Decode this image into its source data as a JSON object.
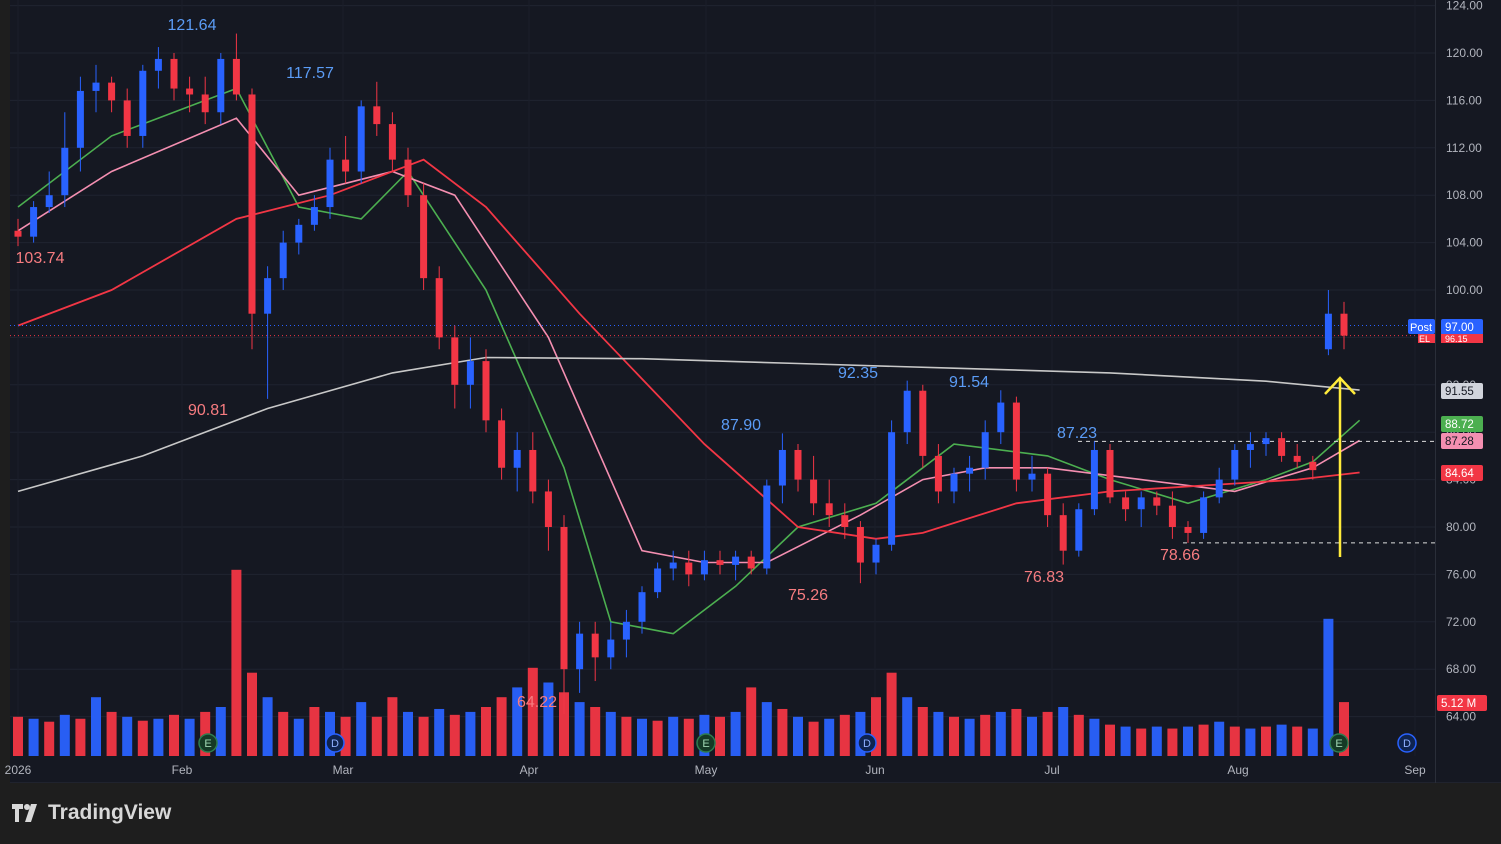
{
  "branding": {
    "name": "TradingView",
    "logo_icon": "tradingview-logo-icon"
  },
  "colors": {
    "background": "#151822",
    "up": "#2962ff",
    "down": "#f23645",
    "ma_fast": "#4caf50",
    "ma_mid": "#f48fb1",
    "ma_slow": "#f23645",
    "ma_long": "#c8c8c8",
    "arrow": "#ffeb3b",
    "axis_text": "#b2b5be"
  },
  "price_axis": {
    "ticks": [
      "124.00",
      "120.00",
      "116.00",
      "112.00",
      "108.00",
      "104.00",
      "100.00",
      "96.00",
      "92.00",
      "88.00",
      "84.00",
      "80.00",
      "76.00",
      "72.00",
      "68.00",
      "64.00"
    ]
  },
  "time_axis": {
    "labels": [
      "2026",
      "Feb",
      "Mar",
      "Apr",
      "May",
      "Jun",
      "Jul",
      "Aug",
      "Sep"
    ]
  },
  "price_badges": {
    "post_label": "Post",
    "post_value": "97.00",
    "el_label": "EL",
    "el_value": "96.15",
    "ma_long_value": "91.55",
    "ma_fast_value": "88.72",
    "ma_mid_value": "87.28",
    "ma_slow_value": "84.64",
    "volume_value": "5.12 M"
  },
  "event_markers": {
    "earnings_label": "E",
    "dividend_label": "D"
  },
  "annotations": [
    {
      "text": "121.64",
      "type": "high"
    },
    {
      "text": "117.57",
      "type": "high"
    },
    {
      "text": "103.74",
      "type": "low"
    },
    {
      "text": "90.81",
      "type": "low"
    },
    {
      "text": "64.22",
      "type": "low"
    },
    {
      "text": "87.90",
      "type": "high"
    },
    {
      "text": "75.26",
      "type": "low"
    },
    {
      "text": "92.35",
      "type": "high"
    },
    {
      "text": "91.54",
      "type": "high"
    },
    {
      "text": "76.83",
      "type": "low"
    },
    {
      "text": "87.23",
      "type": "high"
    },
    {
      "text": "78.66",
      "type": "low"
    }
  ],
  "chart_data": {
    "type": "candlestick",
    "y_range": [
      62,
      124
    ],
    "x_period": "2026-01 to 2026-09",
    "candles": [
      [
        105,
        106,
        103.7,
        104.5
      ],
      [
        104.5,
        107.5,
        104,
        107
      ],
      [
        107,
        110,
        106.5,
        108
      ],
      [
        108,
        115,
        107,
        112
      ],
      [
        112,
        118,
        110,
        116.8
      ],
      [
        116.8,
        119,
        115,
        117.5
      ],
      [
        117.5,
        118,
        115,
        116
      ],
      [
        116,
        117,
        112,
        113
      ],
      [
        113,
        119,
        112,
        118.5
      ],
      [
        118.5,
        120.5,
        117,
        119.5
      ],
      [
        119.5,
        120,
        116,
        117
      ],
      [
        117,
        118,
        115,
        116.5
      ],
      [
        116.5,
        118,
        114,
        115
      ],
      [
        115,
        120,
        114,
        119.5
      ],
      [
        119.5,
        121.64,
        116,
        116.5
      ],
      [
        116.5,
        117,
        95,
        98
      ],
      [
        98,
        102,
        90.81,
        101
      ],
      [
        101,
        105,
        100,
        104
      ],
      [
        104,
        106,
        103,
        105.5
      ],
      [
        105.5,
        108,
        105,
        107
      ],
      [
        107,
        112,
        106,
        111
      ],
      [
        111,
        113,
        109,
        110
      ],
      [
        110,
        116,
        109,
        115.5
      ],
      [
        115.5,
        117.57,
        113,
        114
      ],
      [
        114,
        115,
        110,
        111
      ],
      [
        111,
        112,
        107,
        108
      ],
      [
        108,
        109,
        100,
        101
      ],
      [
        101,
        102,
        95,
        96
      ],
      [
        96,
        97,
        90,
        92
      ],
      [
        92,
        96,
        90,
        94
      ],
      [
        94,
        95,
        88,
        89
      ],
      [
        89,
        90,
        84,
        85
      ],
      [
        85,
        88,
        83,
        86.5
      ],
      [
        86.5,
        88,
        82,
        83
      ],
      [
        83,
        84,
        78,
        80
      ],
      [
        80,
        81,
        64.22,
        68
      ],
      [
        68,
        72,
        66,
        71
      ],
      [
        71,
        72,
        67,
        69
      ],
      [
        69,
        72,
        68,
        70.5
      ],
      [
        70.5,
        73,
        69,
        72
      ],
      [
        72,
        75,
        71,
        74.5
      ],
      [
        74.5,
        77,
        74,
        76.5
      ],
      [
        76.5,
        78,
        75.5,
        77
      ],
      [
        77,
        78,
        75,
        76
      ],
      [
        76,
        78,
        75.5,
        77.2
      ],
      [
        77.2,
        78,
        76,
        76.8
      ],
      [
        76.8,
        78,
        75.5,
        77.5
      ],
      [
        77.5,
        78,
        76,
        76.5
      ],
      [
        76.5,
        84,
        76,
        83.5
      ],
      [
        83.5,
        87.9,
        82,
        86.5
      ],
      [
        86.5,
        87,
        83,
        84
      ],
      [
        84,
        86,
        81,
        82
      ],
      [
        82,
        84,
        80,
        81
      ],
      [
        81,
        82,
        79,
        80
      ],
      [
        80,
        80.5,
        75.26,
        77
      ],
      [
        77,
        79,
        76,
        78.5
      ],
      [
        78.5,
        89,
        78,
        88
      ],
      [
        88,
        92.35,
        87,
        91.5
      ],
      [
        91.5,
        92,
        85,
        86
      ],
      [
        86,
        87,
        82,
        83
      ],
      [
        83,
        85,
        82,
        84.5
      ],
      [
        84.5,
        86,
        83,
        85
      ],
      [
        85,
        89,
        84,
        88
      ],
      [
        88,
        91.54,
        87,
        90.5
      ],
      [
        90.5,
        91,
        83,
        84
      ],
      [
        84,
        86,
        83,
        84.5
      ],
      [
        84.5,
        85,
        80,
        81
      ],
      [
        81,
        82,
        76.83,
        78
      ],
      [
        78,
        82,
        77.5,
        81.5
      ],
      [
        81.5,
        87.23,
        81,
        86.5
      ],
      [
        86.5,
        87,
        82,
        82.5
      ],
      [
        82.5,
        83,
        80.5,
        81.5
      ],
      [
        81.5,
        83,
        80,
        82.5
      ],
      [
        82.5,
        83,
        81,
        81.8
      ],
      [
        81.8,
        83,
        79,
        80
      ],
      [
        80,
        80.5,
        78.66,
        79.5
      ],
      [
        79.5,
        83,
        79,
        82.5
      ],
      [
        82.5,
        85,
        82,
        84
      ],
      [
        84,
        87,
        83.5,
        86.5
      ],
      [
        86.5,
        88,
        85,
        87
      ],
      [
        87,
        88,
        86,
        87.5
      ],
      [
        87.5,
        88,
        85.5,
        86
      ],
      [
        86,
        87,
        85,
        85.5
      ],
      [
        85.5,
        86,
        84,
        84.8
      ],
      [
        95,
        100,
        94.5,
        98
      ],
      [
        98,
        99,
        95,
        96.15
      ]
    ],
    "volume": [
      [
        40,
        0
      ],
      [
        38,
        1
      ],
      [
        35,
        0
      ],
      [
        42,
        1
      ],
      [
        38,
        0
      ],
      [
        60,
        1
      ],
      [
        45,
        0
      ],
      [
        40,
        1
      ],
      [
        36,
        0
      ],
      [
        38,
        1
      ],
      [
        42,
        0
      ],
      [
        38,
        1
      ],
      [
        45,
        0
      ],
      [
        50,
        1
      ],
      [
        190,
        0
      ],
      [
        85,
        0
      ],
      [
        60,
        1
      ],
      [
        45,
        0
      ],
      [
        38,
        1
      ],
      [
        50,
        0
      ],
      [
        45,
        1
      ],
      [
        40,
        0
      ],
      [
        55,
        1
      ],
      [
        40,
        0
      ],
      [
        60,
        0
      ],
      [
        45,
        1
      ],
      [
        40,
        0
      ],
      [
        48,
        1
      ],
      [
        42,
        0
      ],
      [
        45,
        1
      ],
      [
        50,
        0
      ],
      [
        60,
        0
      ],
      [
        70,
        1
      ],
      [
        90,
        0
      ],
      [
        75,
        1
      ],
      [
        65,
        0
      ],
      [
        55,
        1
      ],
      [
        50,
        0
      ],
      [
        45,
        1
      ],
      [
        40,
        0
      ],
      [
        38,
        1
      ],
      [
        36,
        0
      ],
      [
        40,
        1
      ],
      [
        38,
        0
      ],
      [
        42,
        1
      ],
      [
        40,
        0
      ],
      [
        45,
        1
      ],
      [
        70,
        0
      ],
      [
        55,
        1
      ],
      [
        48,
        0
      ],
      [
        40,
        1
      ],
      [
        35,
        0
      ],
      [
        38,
        1
      ],
      [
        42,
        0
      ],
      [
        45,
        1
      ],
      [
        60,
        0
      ],
      [
        85,
        0
      ],
      [
        60,
        1
      ],
      [
        50,
        0
      ],
      [
        45,
        1
      ],
      [
        40,
        0
      ],
      [
        38,
        1
      ],
      [
        42,
        0
      ],
      [
        45,
        1
      ],
      [
        48,
        0
      ],
      [
        40,
        1
      ],
      [
        45,
        0
      ],
      [
        50,
        1
      ],
      [
        42,
        0
      ],
      [
        38,
        1
      ],
      [
        32,
        0
      ],
      [
        30,
        1
      ],
      [
        28,
        0
      ],
      [
        30,
        1
      ],
      [
        28,
        0
      ],
      [
        30,
        1
      ],
      [
        32,
        0
      ],
      [
        35,
        1
      ],
      [
        30,
        0
      ],
      [
        28,
        1
      ],
      [
        30,
        0
      ],
      [
        32,
        1
      ],
      [
        30,
        0
      ],
      [
        28,
        1
      ],
      [
        140,
        1
      ],
      [
        55,
        0
      ]
    ],
    "series": [
      {
        "name": "",
        "color": "#4caf50",
        "points": [
          [
            0,
            107
          ],
          [
            6,
            113
          ],
          [
            14,
            117
          ],
          [
            18,
            107
          ],
          [
            22,
            106
          ],
          [
            25,
            110
          ],
          [
            30,
            100
          ],
          [
            35,
            85
          ],
          [
            38,
            72
          ],
          [
            42,
            71
          ],
          [
            46,
            75
          ],
          [
            50,
            80
          ],
          [
            55,
            82
          ],
          [
            60,
            87
          ],
          [
            66,
            86
          ],
          [
            70,
            84
          ],
          [
            75,
            82
          ],
          [
            80,
            84
          ],
          [
            83,
            85.5
          ],
          [
            86,
            89
          ]
        ]
      },
      {
        "name": "",
        "color": "#f48fb1",
        "points": [
          [
            0,
            105
          ],
          [
            6,
            110
          ],
          [
            14,
            114.5
          ],
          [
            18,
            108
          ],
          [
            24,
            110
          ],
          [
            28,
            108
          ],
          [
            34,
            96
          ],
          [
            40,
            78
          ],
          [
            44,
            77
          ],
          [
            48,
            77
          ],
          [
            54,
            81
          ],
          [
            58,
            84
          ],
          [
            62,
            85
          ],
          [
            66,
            85
          ],
          [
            72,
            84
          ],
          [
            78,
            83
          ],
          [
            83,
            85
          ],
          [
            86,
            87.3
          ]
        ]
      },
      {
        "name": "",
        "color": "#f23645",
        "points": [
          [
            0,
            97
          ],
          [
            6,
            100
          ],
          [
            14,
            106
          ],
          [
            20,
            108
          ],
          [
            26,
            111
          ],
          [
            30,
            107
          ],
          [
            36,
            98
          ],
          [
            44,
            87
          ],
          [
            50,
            80
          ],
          [
            55,
            79
          ],
          [
            58,
            79.5
          ],
          [
            64,
            82
          ],
          [
            70,
            83
          ],
          [
            76,
            83.5
          ],
          [
            82,
            84
          ],
          [
            86,
            84.6
          ]
        ]
      },
      {
        "name": "",
        "color": "#c8c8c8",
        "points": [
          [
            0,
            83
          ],
          [
            8,
            86
          ],
          [
            16,
            90
          ],
          [
            24,
            93
          ],
          [
            30,
            94.3
          ],
          [
            40,
            94.2
          ],
          [
            50,
            93.8
          ],
          [
            60,
            93.4
          ],
          [
            70,
            93
          ],
          [
            80,
            92.3
          ],
          [
            86,
            91.55
          ]
        ]
      }
    ],
    "reference_lines": [
      87.23,
      78.66
    ],
    "last_values": {
      "post": 97.0,
      "el": 96.15
    }
  }
}
